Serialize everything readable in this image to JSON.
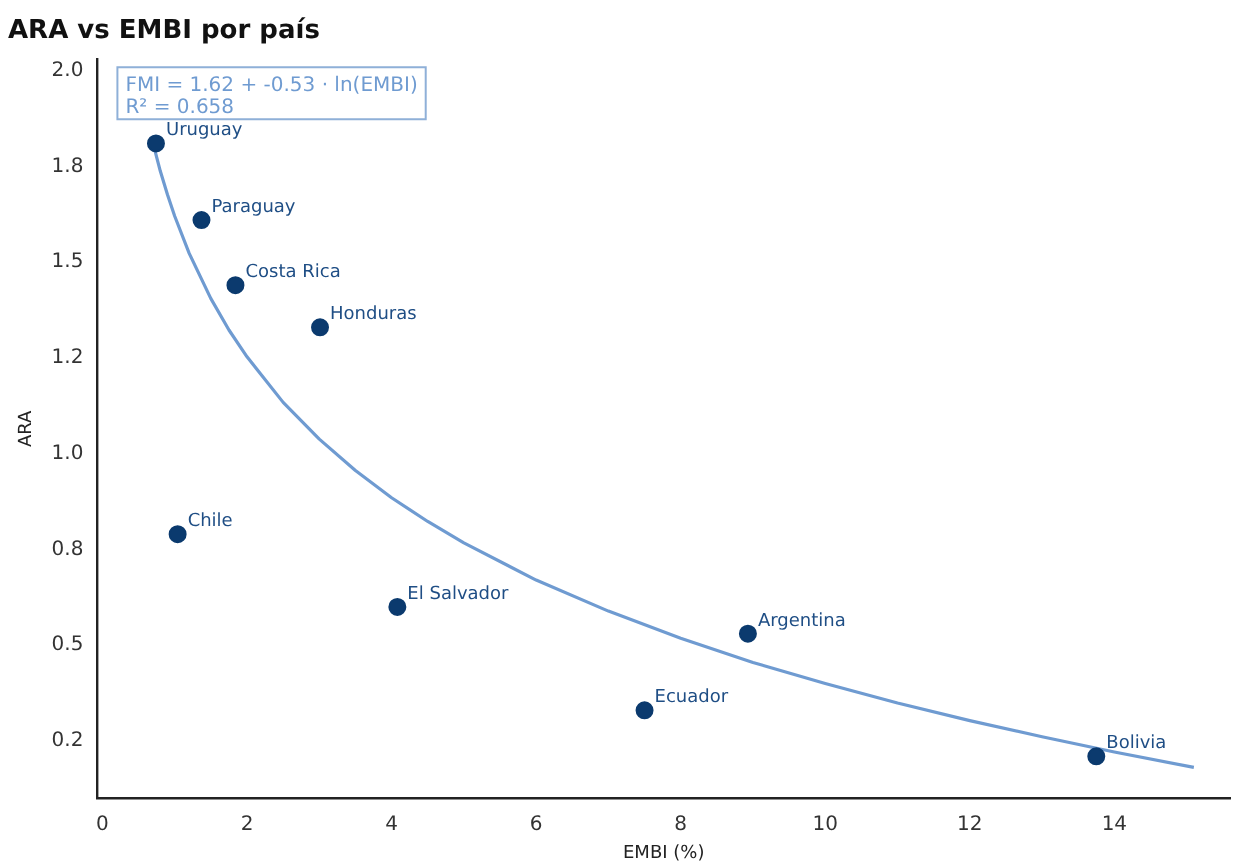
{
  "chart_data": {
    "type": "scatter",
    "title": "ARA vs EMBI por país",
    "xlabel": "EMBI (%)",
    "ylabel": "ARA",
    "series": [
      {
        "marker": "circle",
        "color": "#0b3a6e",
        "x": [
          0.74,
          1.37,
          1.84,
          3.01,
          1.04,
          4.08,
          7.5,
          8.93,
          13.75
        ],
        "values": [
          1.81,
          1.61,
          1.44,
          1.33,
          0.79,
          0.6,
          0.33,
          0.53,
          0.21
        ]
      },
      {
        "type": "line",
        "marker": "none",
        "color": "#6f9bd1",
        "x": [
          0.7,
          0.8,
          0.9,
          1,
          1.2,
          1.5,
          1.75,
          2,
          2.5,
          3,
          3.5,
          4,
          4.5,
          5,
          6,
          7,
          8,
          9,
          10,
          11,
          12,
          13,
          14,
          15.1
        ],
        "values": [
          1.81,
          1.738,
          1.676,
          1.62,
          1.523,
          1.405,
          1.323,
          1.253,
          1.134,
          1.038,
          0.956,
          0.885,
          0.823,
          0.767,
          0.67,
          0.589,
          0.518,
          0.455,
          0.4,
          0.349,
          0.303,
          0.261,
          0.221,
          0.181
        ]
      }
    ],
    "annotations": [
      "FMI = 1.62 + -0.53 · ln(EMBI)",
      "R² = 0.658",
      {
        "text": "Uruguay",
        "x": 0.74,
        "y": 1.81
      },
      {
        "text": "Paraguay",
        "x": 1.37,
        "y": 1.61
      },
      {
        "text": "Costa Rica",
        "x": 1.84,
        "y": 1.44
      },
      {
        "text": "Honduras",
        "x": 3.01,
        "y": 1.33
      },
      {
        "text": "Chile",
        "x": 1.04,
        "y": 0.79
      },
      {
        "text": "El Salvador",
        "x": 4.08,
        "y": 0.6
      },
      {
        "text": "Ecuador",
        "x": 7.5,
        "y": 0.33
      },
      {
        "text": "Argentina",
        "x": 8.93,
        "y": 0.53
      },
      {
        "text": "Bolivia",
        "x": 13.75,
        "y": 0.21
      }
    ],
    "xlim": [
      -0.07,
      15.6
    ],
    "xticks": [
      0,
      2,
      4,
      6,
      8,
      10,
      12,
      14
    ],
    "ylim": [
      0.1,
      2.03
    ],
    "yticks": [
      {
        "value": 0.25,
        "label": "0.2"
      },
      0.5,
      {
        "value": 0.75,
        "label": "0.8"
      },
      {
        "value": 1,
        "label": "1.0"
      },
      {
        "value": 1.25,
        "label": "1.2"
      },
      1.5,
      {
        "value": 1.75,
        "label": "1.8"
      },
      {
        "value": 2.0,
        "label": "2.0"
      }
    ],
    "grid": false,
    "legend": false
  }
}
